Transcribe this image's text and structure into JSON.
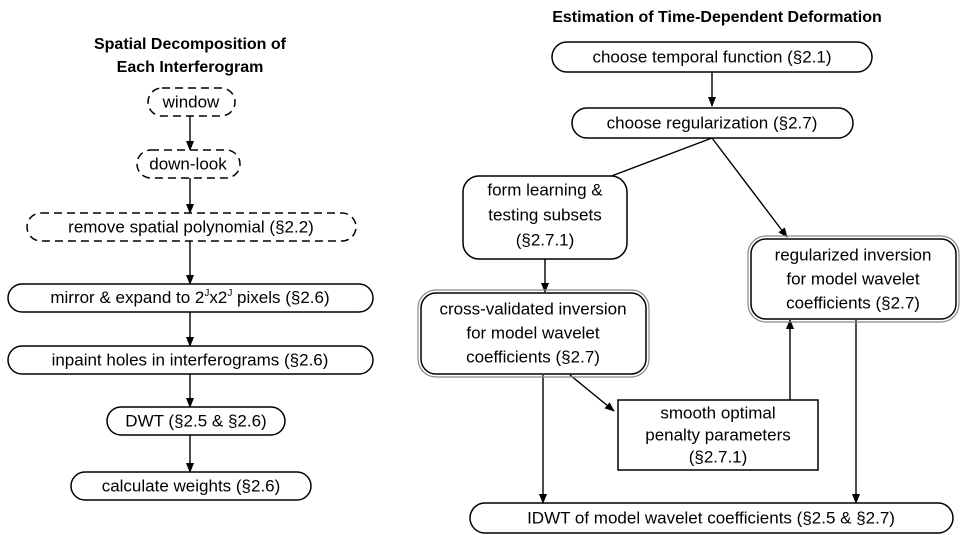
{
  "left": {
    "title": [
      "Spatial Decomposition of",
      "Each Interferogram"
    ],
    "nodes": [
      {
        "label": "window"
      },
      {
        "label": "down-look"
      },
      {
        "label": "remove spatial polynomial (§2.2)"
      },
      {
        "label": [
          "mirror & expand to 2",
          "J",
          "x2",
          "J",
          " pixels (§2.6)"
        ]
      },
      {
        "label": "inpaint holes in interferograms (§2.6)"
      },
      {
        "label": "DWT (§2.5 & §2.6)"
      },
      {
        "label": "calculate weights (§2.6)"
      }
    ]
  },
  "right": {
    "title": "Estimation of Time-Dependent Deformation",
    "nodes": [
      {
        "label": "choose temporal function (§2.1)"
      },
      {
        "label": "choose regularization (§2.7)"
      },
      {
        "label": [
          "form learning &",
          "testing subsets",
          "(§2.7.1)"
        ]
      },
      {
        "label": [
          "regularized inversion",
          "for model wavelet",
          "coefficients (§2.7)"
        ]
      },
      {
        "label": [
          "cross-validated inversion",
          "for model wavelet",
          "coefficients (§2.7)"
        ]
      },
      {
        "label": [
          "smooth optimal",
          "penalty parameters",
          "(§2.7.1)"
        ]
      },
      {
        "label": "IDWT of model wavelet coefficients (§2.5 & §2.7)"
      }
    ]
  }
}
